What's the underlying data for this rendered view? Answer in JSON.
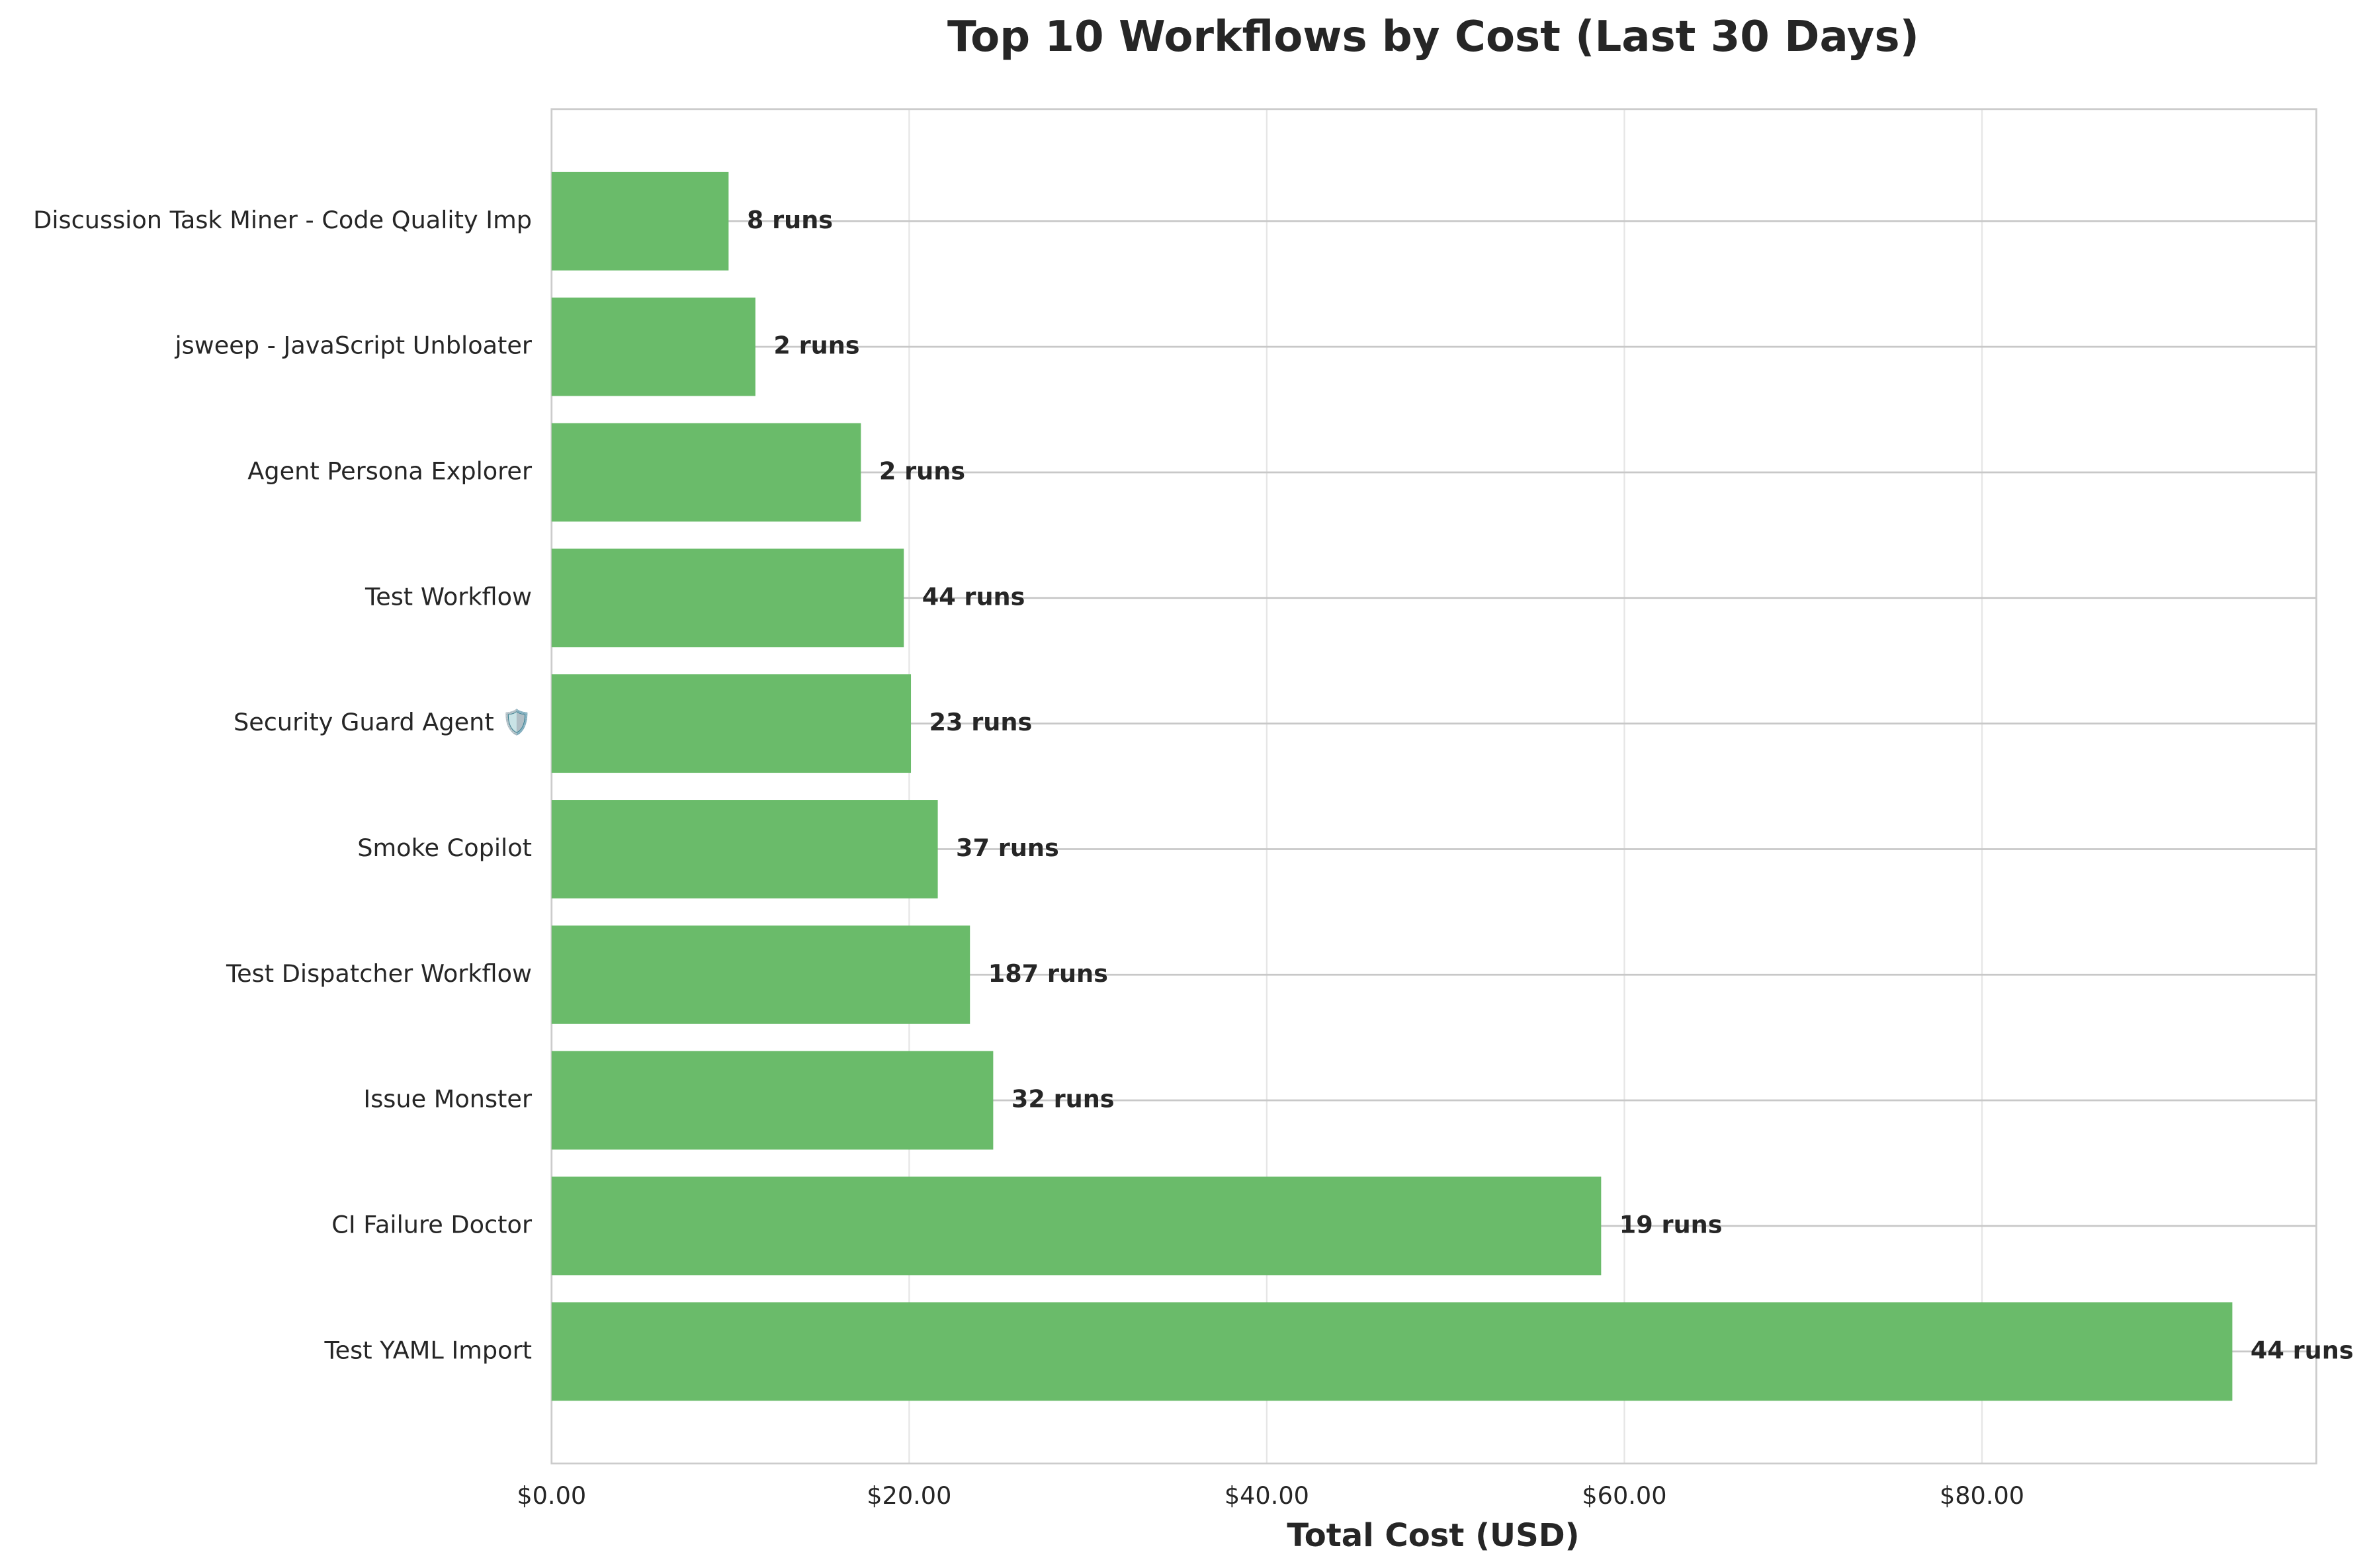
{
  "chart_data": {
    "type": "barh",
    "title": "Top 10 Workflows by Cost (Last 30 Days)",
    "x_label": "Total Cost (USD)",
    "categories": [
      "Discussion Task Miner - Code Quality Imp",
      "jsweep - JavaScript Unbloater",
      "Agent Persona Explorer",
      "Test Workflow",
      "Security Guard Agent 🛡️",
      "Smoke Copilot",
      "Test Dispatcher Workflow",
      "Issue Monster",
      "CI Failure Doctor",
      "Test YAML Import"
    ],
    "values": [
      9.9,
      11.4,
      17.3,
      19.7,
      20.1,
      21.6,
      23.4,
      24.7,
      58.7,
      94.0
    ],
    "annotations": [
      "8 runs",
      "2 runs",
      "2 runs",
      "44 runs",
      "23 runs",
      "37 runs",
      "187 runs",
      "32 runs",
      "19 runs",
      "44 runs"
    ],
    "color": "#6abb6a",
    "xlim": [
      0,
      98.7
    ],
    "xticks": [
      {
        "value": 0,
        "label": "$0.00"
      },
      {
        "value": 20,
        "label": "$20.00"
      },
      {
        "value": 40,
        "label": "$40.00"
      },
      {
        "value": 60,
        "label": "$60.00"
      },
      {
        "value": 80,
        "label": "$80.00"
      }
    ],
    "grid": true
  }
}
